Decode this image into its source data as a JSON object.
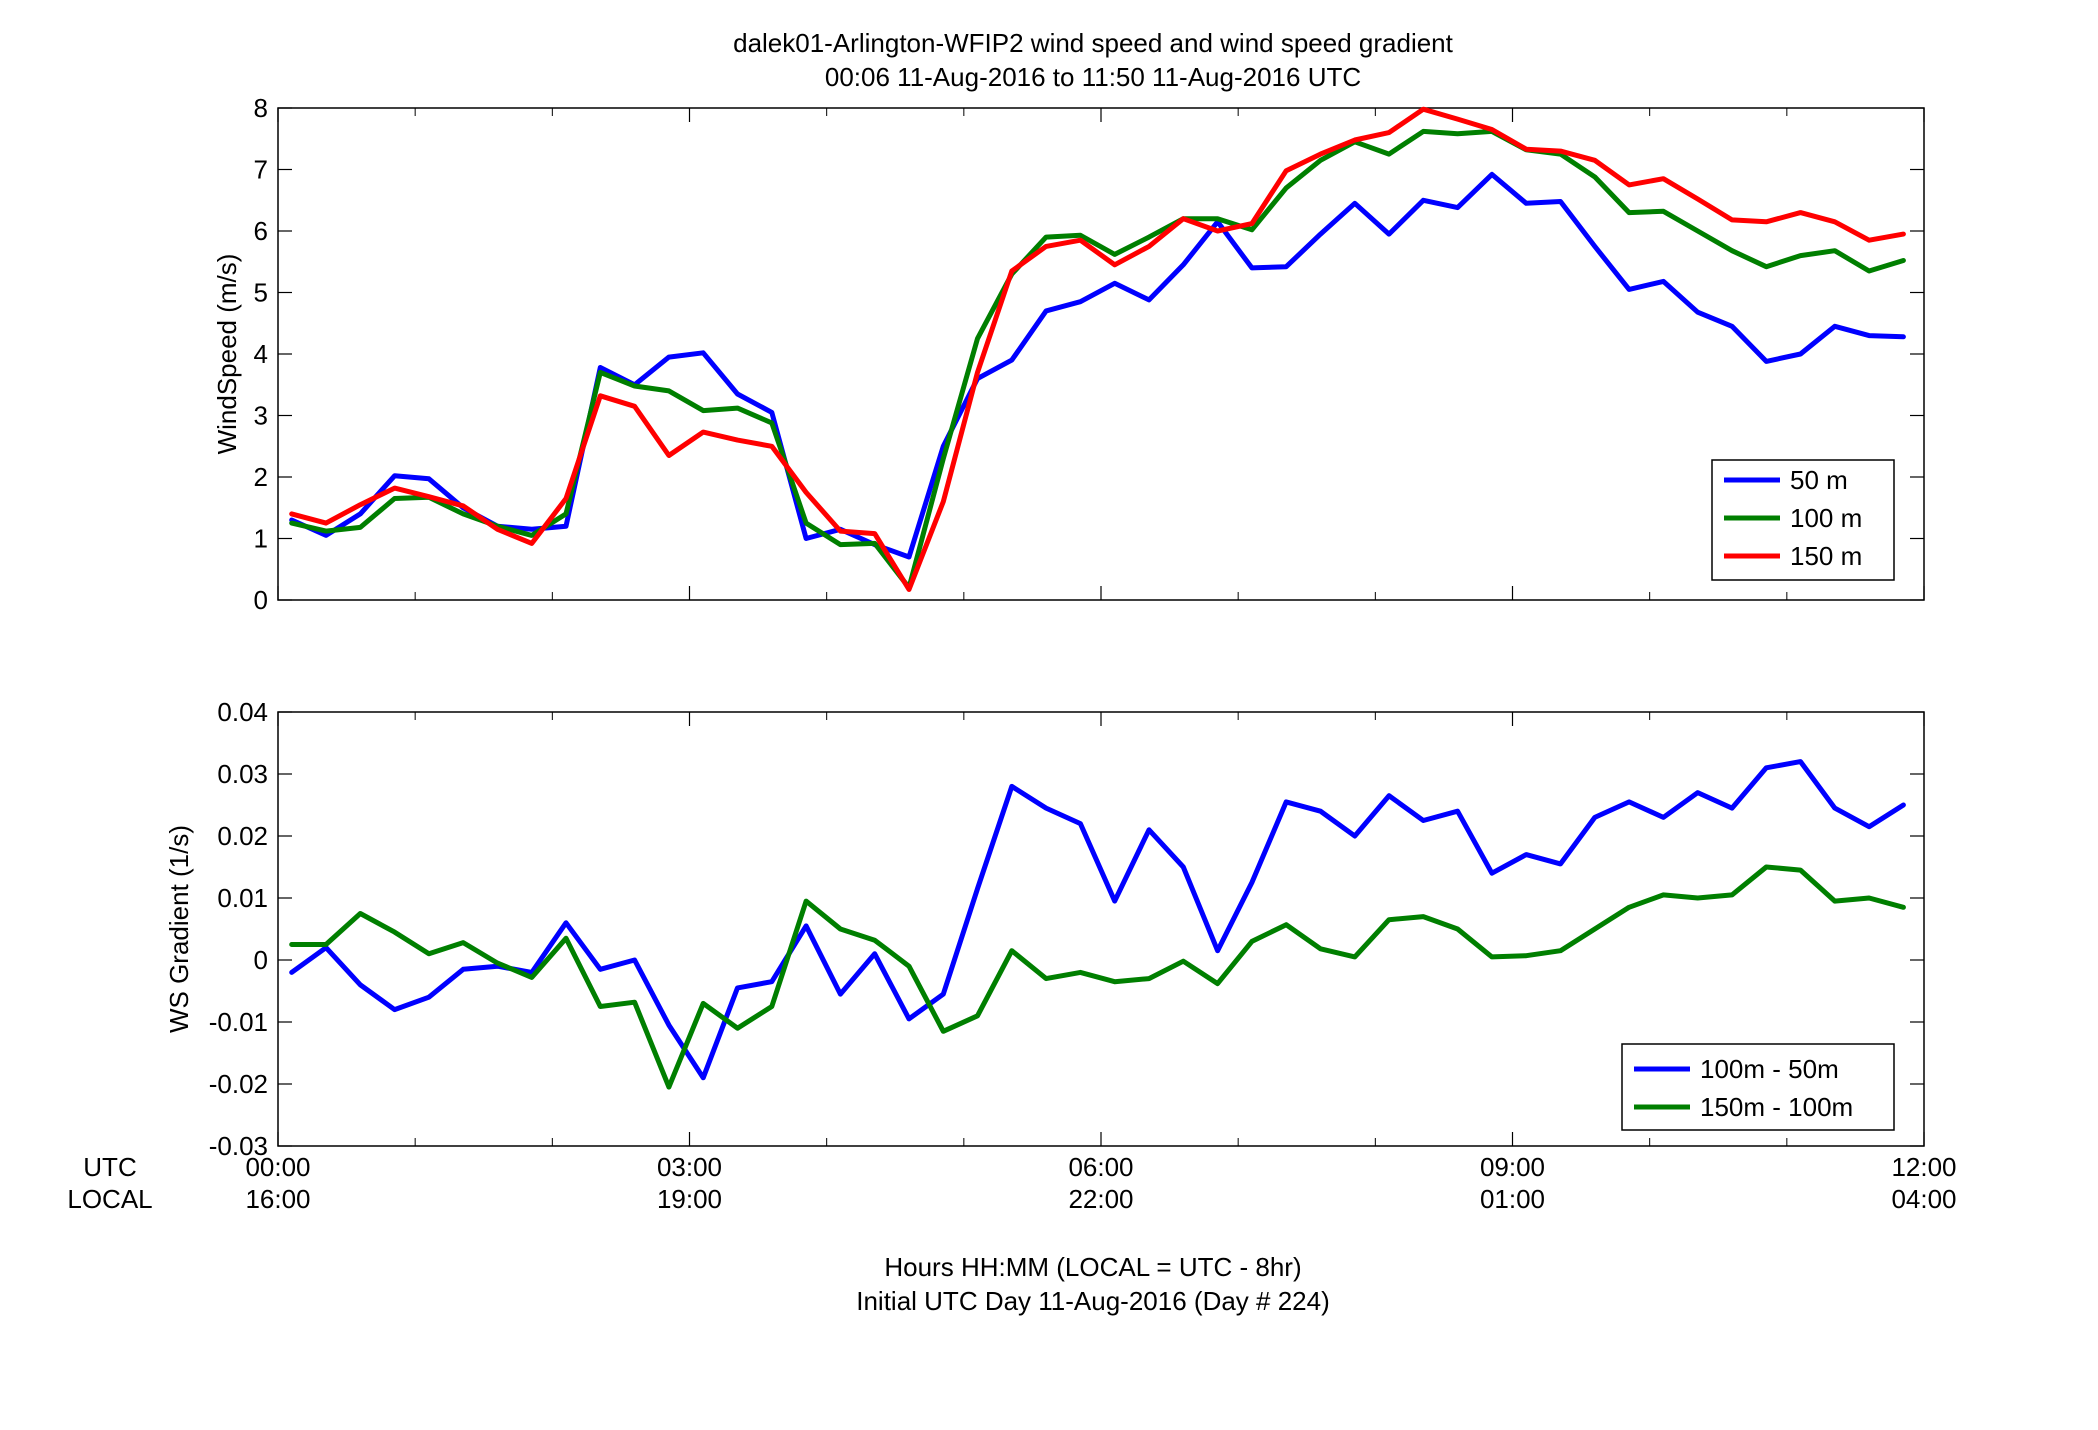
{
  "title": {
    "line1": "dalek01-Arlington-WFIP2  wind speed and wind speed gradient",
    "line2": "00:06 11-Aug-2016 to 11:50 11-Aug-2016  UTC"
  },
  "xaxis": {
    "row_label_utc": "UTC",
    "row_label_local": "LOCAL",
    "utc_ticks": [
      "00:00",
      "03:00",
      "06:00",
      "09:00",
      "12:00"
    ],
    "local_ticks": [
      "16:00",
      "19:00",
      "22:00",
      "01:00",
      "04:00"
    ],
    "label_line1": "Hours HH:MM  (LOCAL = UTC - 8hr)",
    "label_line2": "Initial UTC Day 11-Aug-2016 (Day # 224)"
  },
  "colors": {
    "blue": "#0000ff",
    "green": "#007f00",
    "red": "#ff0000"
  },
  "chart_data": [
    {
      "type": "line",
      "ylabel": "WindSpeed (m/s)",
      "xlim": [
        0,
        12
      ],
      "ylim": [
        0,
        8
      ],
      "yticks": [
        0,
        1,
        2,
        3,
        4,
        5,
        6,
        7,
        8
      ],
      "grid": false,
      "legend_position": "bottom-right",
      "x": [
        0.1,
        0.35,
        0.6,
        0.85,
        1.1,
        1.35,
        1.6,
        1.85,
        2.1,
        2.35,
        2.6,
        2.85,
        3.1,
        3.35,
        3.6,
        3.85,
        4.1,
        4.35,
        4.6,
        4.85,
        5.1,
        5.35,
        5.6,
        5.85,
        6.1,
        6.35,
        6.6,
        6.85,
        7.1,
        7.35,
        7.6,
        7.85,
        8.1,
        8.35,
        8.6,
        8.85,
        9.1,
        9.35,
        9.6,
        9.85,
        10.1,
        10.35,
        10.6,
        10.85,
        11.1,
        11.35,
        11.6,
        11.85
      ],
      "series": [
        {
          "name": "50 m",
          "color": "#0000ff",
          "values": [
            1.3,
            1.05,
            1.4,
            2.02,
            1.97,
            1.5,
            1.2,
            1.15,
            1.2,
            3.78,
            3.5,
            3.95,
            4.02,
            3.35,
            3.05,
            1.0,
            1.15,
            0.9,
            0.7,
            2.5,
            3.6,
            3.9,
            4.7,
            4.85,
            5.15,
            4.88,
            5.45,
            6.15,
            5.4,
            5.42,
            5.95,
            6.45,
            5.95,
            6.5,
            6.38,
            6.92,
            6.45,
            6.48,
            5.75,
            5.05,
            5.18,
            4.68,
            4.45,
            3.88,
            4.0,
            4.45,
            4.3,
            4.28
          ]
        },
        {
          "name": "100 m",
          "color": "#007f00",
          "values": [
            1.25,
            1.12,
            1.18,
            1.65,
            1.67,
            1.4,
            1.2,
            1.05,
            1.4,
            3.7,
            3.48,
            3.4,
            3.08,
            3.12,
            2.88,
            1.25,
            0.9,
            0.92,
            0.2,
            2.3,
            4.25,
            5.3,
            5.9,
            5.93,
            5.62,
            5.9,
            6.2,
            6.2,
            6.02,
            6.7,
            7.15,
            7.45,
            7.25,
            7.62,
            7.58,
            7.62,
            7.32,
            7.25,
            6.88,
            6.3,
            6.32,
            6.0,
            5.68,
            5.42,
            5.6,
            5.68,
            5.35,
            5.52
          ]
        },
        {
          "name": "150 m",
          "color": "#ff0000",
          "values": [
            1.4,
            1.25,
            1.55,
            1.82,
            1.68,
            1.53,
            1.15,
            0.92,
            1.65,
            3.32,
            3.15,
            2.35,
            2.73,
            2.6,
            2.5,
            1.75,
            1.12,
            1.08,
            0.17,
            1.6,
            3.7,
            5.35,
            5.75,
            5.85,
            5.45,
            5.75,
            6.2,
            6.0,
            6.12,
            6.98,
            7.25,
            7.48,
            7.6,
            7.98,
            7.82,
            7.65,
            7.33,
            7.3,
            7.15,
            6.75,
            6.85,
            6.52,
            6.18,
            6.15,
            6.3,
            6.15,
            5.85,
            5.95
          ]
        }
      ]
    },
    {
      "type": "line",
      "ylabel": "WS Gradient (1/s)",
      "xlim": [
        0,
        12
      ],
      "ylim": [
        -0.03,
        0.04
      ],
      "yticks": [
        -0.03,
        -0.02,
        -0.01,
        0,
        0.01,
        0.02,
        0.03,
        0.04
      ],
      "grid": false,
      "legend_position": "bottom-right",
      "x": [
        0.1,
        0.35,
        0.6,
        0.85,
        1.1,
        1.35,
        1.6,
        1.85,
        2.1,
        2.35,
        2.6,
        2.85,
        3.1,
        3.35,
        3.6,
        3.85,
        4.1,
        4.35,
        4.6,
        4.85,
        5.1,
        5.35,
        5.6,
        5.85,
        6.1,
        6.35,
        6.6,
        6.85,
        7.1,
        7.35,
        7.6,
        7.85,
        8.1,
        8.35,
        8.6,
        8.85,
        9.1,
        9.35,
        9.6,
        9.85,
        10.1,
        10.35,
        10.6,
        10.85,
        11.1,
        11.35,
        11.6,
        11.85
      ],
      "series": [
        {
          "name": "100m - 50m",
          "color": "#0000ff",
          "values": [
            -0.002,
            0.002,
            -0.004,
            -0.008,
            -0.006,
            -0.0015,
            -0.001,
            -0.002,
            0.006,
            -0.0015,
            0.0,
            -0.0105,
            -0.019,
            -0.0045,
            -0.0035,
            0.0055,
            -0.0055,
            0.001,
            -0.0095,
            -0.0055,
            0.0115,
            0.028,
            0.0245,
            0.022,
            0.0095,
            0.021,
            0.015,
            0.0015,
            0.0125,
            0.0255,
            0.024,
            0.02,
            0.0265,
            0.0225,
            0.024,
            0.014,
            0.017,
            0.0155,
            0.023,
            0.0255,
            0.023,
            0.027,
            0.0245,
            0.031,
            0.032,
            0.0245,
            0.0215,
            0.025
          ]
        },
        {
          "name": "150m - 100m",
          "color": "#007f00",
          "values": [
            0.0025,
            0.0025,
            0.0075,
            0.0045,
            0.001,
            0.0028,
            -0.0005,
            -0.0028,
            0.0035,
            -0.0075,
            -0.0068,
            -0.0205,
            -0.007,
            -0.011,
            -0.0075,
            0.0095,
            0.005,
            0.0032,
            -0.001,
            -0.0115,
            -0.009,
            0.0015,
            -0.003,
            -0.002,
            -0.0035,
            -0.003,
            -0.0002,
            -0.0038,
            0.003,
            0.0057,
            0.0018,
            0.0005,
            0.0065,
            0.007,
            0.005,
            0.0005,
            0.0007,
            0.0015,
            0.005,
            0.0085,
            0.0105,
            0.01,
            0.0105,
            0.015,
            0.0145,
            0.0095,
            0.01,
            0.0085
          ]
        }
      ]
    }
  ]
}
